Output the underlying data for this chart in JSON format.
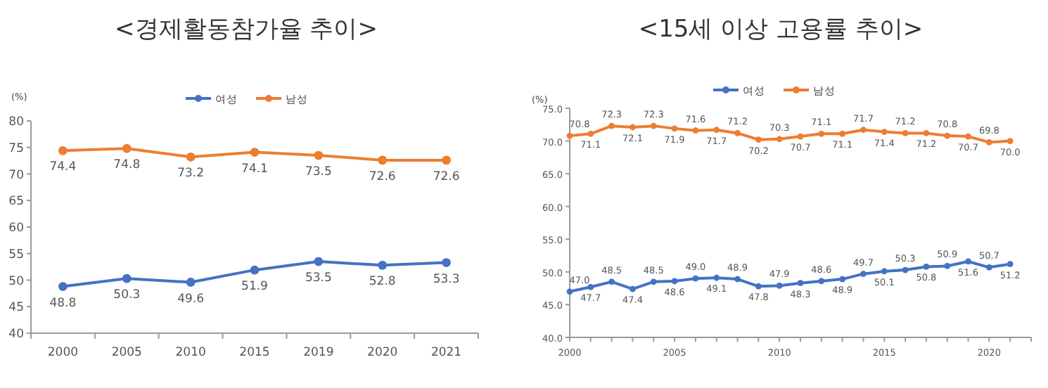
{
  "chart_data": [
    {
      "type": "line",
      "title": "<경제활동참가율 추이>",
      "ylabel": "(%)",
      "categories": [
        "2000",
        "2005",
        "2010",
        "2015",
        "2019",
        "2020",
        "2021"
      ],
      "series": [
        {
          "name": "여성",
          "color": "#4472c4",
          "values": [
            48.8,
            50.3,
            49.6,
            51.9,
            53.5,
            52.8,
            53.3
          ]
        },
        {
          "name": "남성",
          "color": "#ed7d31",
          "values": [
            74.4,
            74.8,
            73.2,
            74.1,
            73.5,
            72.6,
            72.6
          ]
        }
      ],
      "ylim": [
        40,
        80
      ],
      "yticks": [
        40,
        45,
        50,
        55,
        60,
        65,
        70,
        75,
        80
      ],
      "legend": "top",
      "data_labels": true,
      "marker": "circle",
      "grid": false
    },
    {
      "type": "line",
      "title": "<15세 이상 고용률 추이>",
      "ylabel": "(%)",
      "x": [
        2000,
        2001,
        2002,
        2003,
        2004,
        2005,
        2006,
        2007,
        2008,
        2009,
        2010,
        2011,
        2012,
        2013,
        2014,
        2015,
        2016,
        2017,
        2018,
        2019,
        2020,
        2021
      ],
      "series": [
        {
          "name": "여성",
          "color": "#4472c4",
          "values": [
            47.0,
            47.7,
            48.5,
            47.4,
            48.5,
            48.6,
            49.0,
            49.1,
            48.9,
            47.8,
            47.9,
            48.3,
            48.6,
            48.9,
            49.7,
            50.1,
            50.3,
            50.8,
            50.9,
            51.6,
            50.7,
            51.2
          ],
          "value_labels": [
            "47.0",
            "47.7",
            "48.5",
            "47.4",
            "48.5",
            "48.6",
            "49.0",
            "49.1",
            "48.9",
            "47.8",
            "47.9",
            "48.3",
            "48.6",
            "48.9",
            "49.7",
            "50.1",
            "50.3",
            "50.8",
            "50.9",
            "51.6",
            "50.7",
            "51.2"
          ]
        },
        {
          "name": "남성",
          "color": "#ed7d31",
          "values": [
            70.8,
            71.1,
            72.3,
            72.1,
            72.3,
            71.9,
            71.6,
            71.7,
            71.2,
            70.2,
            70.3,
            70.7,
            71.1,
            71.1,
            71.7,
            71.4,
            71.2,
            71.2,
            70.8,
            70.7,
            69.8,
            70.0
          ],
          "value_labels": [
            "70.8",
            "71.1",
            "72.3",
            "72.1",
            "72.3",
            "71.9",
            "71.6",
            "71.7",
            "71.2",
            "70.2",
            "70.3",
            "70.7",
            "71.1",
            "71.1",
            "71.7",
            "71.4",
            "71.2",
            "71.2",
            "70.8",
            "70.7",
            "69.8",
            "70.0"
          ]
        }
      ],
      "xlim": [
        2000,
        2022
      ],
      "xticks": [
        2000,
        {
          "value": 2001,
          "label": null
        },
        {
          "value": 2002,
          "label": null
        },
        {
          "value": 2003,
          "label": null
        },
        {
          "value": 2004,
          "label": null
        },
        2005,
        {
          "value": 2006,
          "label": null
        },
        {
          "value": 2007,
          "label": null
        },
        {
          "value": 2008,
          "label": null
        },
        {
          "value": 2009,
          "label": null
        },
        2010,
        {
          "value": 2011,
          "label": null
        },
        {
          "value": 2012,
          "label": null
        },
        {
          "value": 2013,
          "label": null
        },
        {
          "value": 2014,
          "label": null
        },
        2015,
        {
          "value": 2016,
          "label": null
        },
        {
          "value": 2017,
          "label": null
        },
        {
          "value": 2018,
          "label": null
        },
        {
          "value": 2019,
          "label": null
        },
        2020,
        {
          "value": 2021,
          "label": null
        },
        {
          "value": 2022,
          "label": null
        }
      ],
      "ylim": [
        40,
        75
      ],
      "yticks": [
        {
          "value": 40,
          "label": "40.0"
        },
        {
          "value": 45,
          "label": "45.0"
        },
        {
          "value": 50,
          "label": "50.0"
        },
        {
          "value": 55,
          "label": "55.0"
        },
        {
          "value": 60,
          "label": "60.0"
        },
        {
          "value": 65,
          "label": "65.0"
        },
        {
          "value": 70,
          "label": "70.0"
        },
        {
          "value": 75,
          "label": "75.0"
        }
      ],
      "legend": "top",
      "marker": "circle",
      "grid": false
    }
  ]
}
